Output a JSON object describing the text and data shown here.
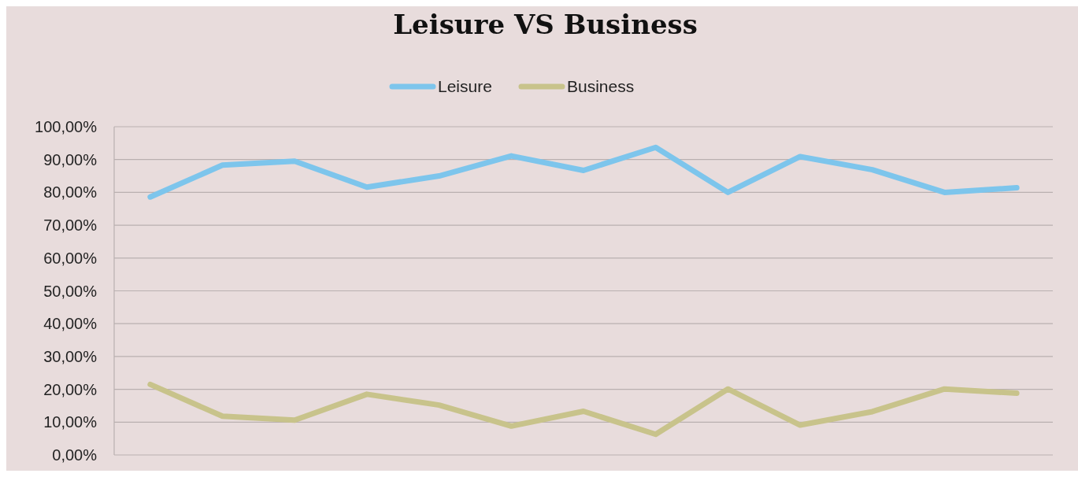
{
  "chart_data": {
    "type": "line",
    "title": "Leisure VS Business",
    "categories": [
      null,
      null,
      null,
      null,
      null,
      null,
      null,
      null,
      null,
      null,
      null,
      null,
      null
    ],
    "series": [
      {
        "name": "Leisure",
        "color": "#7dc5ec",
        "values": [
          78.6,
          88.3,
          89.5,
          81.6,
          85.0,
          91.1,
          86.7,
          93.7,
          80.0,
          90.9,
          86.9,
          80.0,
          81.4
        ]
      },
      {
        "name": "Business",
        "color": "#c8c38b",
        "values": [
          21.5,
          11.8,
          10.6,
          18.5,
          15.2,
          8.8,
          13.3,
          6.3,
          20.1,
          9.1,
          13.2,
          20.1,
          18.8
        ]
      }
    ],
    "ylim": [
      0,
      100
    ],
    "yticks": [
      {
        "value": 0,
        "label": "0,00%"
      },
      {
        "value": 10,
        "label": "10,00%"
      },
      {
        "value": 20,
        "label": "20,00%"
      },
      {
        "value": 30,
        "label": "30,00%"
      },
      {
        "value": 40,
        "label": "40,00%"
      },
      {
        "value": 50,
        "label": "50,00%"
      },
      {
        "value": 60,
        "label": "60,00%"
      },
      {
        "value": 70,
        "label": "70,00%"
      },
      {
        "value": 80,
        "label": "80,00%"
      },
      {
        "value": 90,
        "label": "90,00%"
      },
      {
        "value": 100,
        "label": "100,00%"
      }
    ],
    "grid": "y",
    "legend": "top",
    "tick_labels": "y",
    "marker": "none",
    "line_style": "solid"
  }
}
